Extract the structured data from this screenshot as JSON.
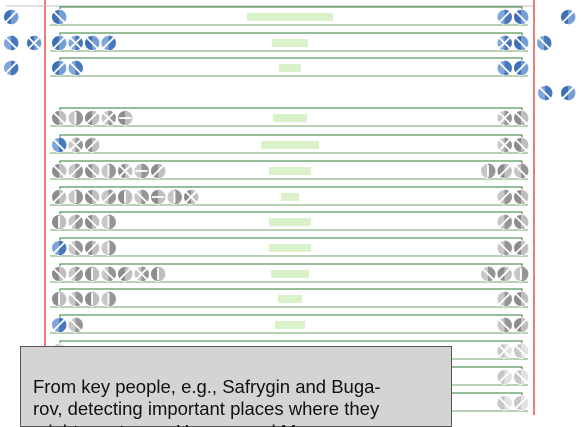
{
  "caption": {
    "text": "From key people, e.g., Safrygin and Buga-\nrov, detecting important places where they\nmight meet, e.g., Havana and Moscow."
  },
  "colors": {
    "boundary": "#e0463c",
    "bracket": "#2e7d32",
    "label_block": "#d9f2c9",
    "icon_blue": "#3f6fb5",
    "icon_blue_light": "#7ea6dc",
    "icon_gray": "#8c8c8c",
    "icon_gray_light": "#c7c7c7",
    "caption_fill": "#d4d4d4"
  },
  "icons": {
    "shape": "slashed-circle-icon",
    "outside_left": [
      {
        "style": "blue",
        "slash": "right"
      },
      {
        "style": "blue",
        "slash": "left"
      },
      {
        "style": "blue",
        "slash": "cross"
      },
      {
        "style": "blue",
        "slash": "right"
      }
    ],
    "outside_right": [
      {
        "style": "blue",
        "slash": "right"
      },
      {
        "style": "blue",
        "slash": "left"
      },
      {
        "style": "blue",
        "slash": "right"
      }
    ],
    "rows": [
      {
        "style": "blue",
        "left": [
          "left"
        ],
        "right": [
          "right",
          "left"
        ]
      },
      {
        "style": "blue",
        "left": [
          "right",
          "cross",
          "left",
          "right"
        ],
        "right": [
          "cross",
          "left"
        ]
      },
      {
        "style": "blue",
        "left": [
          "right",
          "left"
        ],
        "right": [
          "left",
          "right"
        ]
      },
      {
        "style": "gray",
        "left": [
          "left",
          "v",
          "right",
          "cross",
          "h"
        ],
        "right": [
          "cross",
          "left"
        ]
      },
      {
        "style": "mixed",
        "left": [
          "left",
          "cross",
          "right"
        ],
        "right": [
          "cross",
          "left"
        ]
      },
      {
        "style": "gray",
        "left": [
          "left",
          "right",
          "left",
          "v",
          "cross",
          "h",
          "right"
        ],
        "right": [
          "v",
          "right",
          "left"
        ]
      },
      {
        "style": "gray",
        "left": [
          "right",
          "v",
          "left",
          "right",
          "v",
          "left",
          "h",
          "v",
          "cross"
        ],
        "right": [
          "right",
          "left"
        ]
      },
      {
        "style": "gray",
        "left": [
          "v",
          "right",
          "left",
          "v"
        ],
        "right": [
          "right",
          "left"
        ]
      },
      {
        "style": "mixed",
        "left": [
          "right",
          "left",
          "right",
          "v"
        ],
        "right": [
          "left",
          "right"
        ]
      },
      {
        "style": "gray",
        "left": [
          "left",
          "right",
          "v",
          "left",
          "right",
          "cross",
          "v"
        ],
        "right": [
          "left",
          "right",
          "v"
        ]
      },
      {
        "style": "gray",
        "left": [
          "v",
          "left",
          "v",
          "v"
        ],
        "right": [
          "right",
          "left"
        ]
      },
      {
        "style": "mixed",
        "left": [
          "right",
          "left"
        ],
        "right": [
          "left",
          "right"
        ]
      },
      {
        "style": "faded",
        "left": [
          "left"
        ],
        "right": [
          "cross",
          "left"
        ]
      },
      {
        "style": "faded",
        "left": [],
        "right": [
          "right",
          "left"
        ]
      },
      {
        "style": "faded",
        "left": [],
        "right": [
          "left",
          "right"
        ]
      }
    ]
  }
}
